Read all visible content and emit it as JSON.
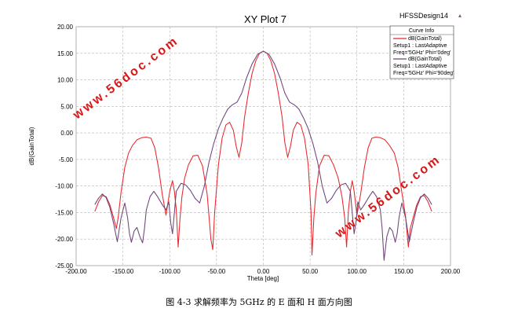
{
  "header": {
    "design_name": "HFSSDesign14",
    "design_icon": "triangle-icon"
  },
  "legend": {
    "title": "Curve Info"
  },
  "watermark": {
    "text": "www.56doc.com",
    "color": "#d81818"
  },
  "caption": "图 4-3 求解频率为 5GHz 的 E 面和 H 面方向图",
  "chart_data": {
    "type": "line",
    "title": "XY Plot 7",
    "xlabel": "Theta [deg]",
    "ylabel": "dB(GainTotal)",
    "xlim": [
      -200,
      200
    ],
    "ylim": [
      -25,
      20
    ],
    "xticks": [
      -200,
      -150,
      -100,
      -50,
      0,
      50,
      100,
      150,
      200
    ],
    "yticks": [
      20,
      15,
      10,
      5,
      0,
      -5,
      -10,
      -15,
      -20,
      -25
    ],
    "xtick_labels": [
      "-200.00",
      "-150.00",
      "-100.00",
      "-50.00",
      "0.00",
      "50.00",
      "100.00",
      "150.00",
      "200.00"
    ],
    "ytick_labels": [
      "20.00",
      "15.00",
      "10.00",
      "5.00",
      "0.00",
      "-5.00",
      "-10.00",
      "-15.00",
      "-20.00",
      "-25.00"
    ],
    "grid": true,
    "legend_position": "top-right",
    "series": [
      {
        "name": "dB(GainTotal)",
        "legend_lines": [
          "dB(GainTotal)",
          "Setup1 : LastAdaptive",
          "Freq='5GHz' Phi='0deg'"
        ],
        "color": "#e8262c",
        "x": [
          -180,
          -176,
          -172,
          -168,
          -164,
          -160,
          -157,
          -155,
          -152,
          -148,
          -144,
          -140,
          -135,
          -130,
          -125,
          -120,
          -116,
          -112,
          -108,
          -104,
          -100,
          -97,
          -95,
          -93,
          -91,
          -89,
          -87,
          -84,
          -80,
          -75,
          -70,
          -65,
          -60,
          -56,
          -54,
          -52,
          -48,
          -44,
          -40,
          -36,
          -32,
          -29,
          -26,
          -23,
          -20,
          -16,
          -12,
          -8,
          -4,
          0,
          4,
          8,
          12,
          16,
          20,
          23,
          26,
          29,
          32,
          36,
          40,
          44,
          48,
          51,
          52,
          54,
          56,
          60,
          65,
          70,
          75,
          80,
          84,
          87,
          89,
          91,
          93,
          95,
          97,
          100,
          104,
          108,
          112,
          116,
          120,
          125,
          130,
          135,
          140,
          144,
          148,
          152,
          155,
          157,
          160,
          164,
          168,
          172,
          176,
          180
        ],
        "y": [
          -14.8,
          -13,
          -11.8,
          -12,
          -13.5,
          -16,
          -18,
          -15.8,
          -11.2,
          -6.5,
          -3.8,
          -2.4,
          -1.3,
          -0.9,
          -0.8,
          -1,
          -2.8,
          -6.5,
          -11.5,
          -15.5,
          -11,
          -9,
          -11,
          -14.5,
          -21.5,
          -16,
          -12,
          -8.5,
          -6,
          -4.3,
          -4.2,
          -6.2,
          -11.5,
          -20,
          -22,
          -15,
          -6,
          -1,
          1.5,
          2,
          0.5,
          -2.5,
          -4.6,
          -1.8,
          3,
          7.5,
          11.2,
          13.6,
          15,
          15.4,
          15,
          13.6,
          11.2,
          7.5,
          3,
          -1.8,
          -4.6,
          -2.5,
          0.5,
          2,
          1.5,
          -1,
          -6,
          -15,
          -23,
          -16,
          -11.5,
          -6.2,
          -4.2,
          -4.3,
          -6,
          -8.5,
          -12,
          -16,
          -21.5,
          -14.5,
          -11,
          -9,
          -11,
          -15.5,
          -11.5,
          -6.5,
          -2.8,
          -1,
          -0.8,
          -0.9,
          -1.3,
          -2.4,
          -3.8,
          -6.5,
          -11.2,
          -15.8,
          -21.5,
          -18,
          -16,
          -13.5,
          -12,
          -11.8,
          -13,
          -14.8
        ]
      },
      {
        "name": "dB(GainTotal)",
        "legend_lines": [
          "dB(GainTotal)",
          "Setup1 : LastAdaptive",
          "Freq='5GHz' Phi='90deg'"
        ],
        "color": "#6d4478",
        "x": [
          -180,
          -176,
          -172,
          -168,
          -164,
          -160,
          -156,
          -152,
          -148,
          -145,
          -143,
          -141,
          -138,
          -135,
          -132,
          -129,
          -127,
          -125,
          -121,
          -117,
          -113,
          -108,
          -104,
          -101,
          -99,
          -97,
          -93,
          -88,
          -83,
          -78,
          -73,
          -68,
          -63,
          -58,
          -53,
          -48,
          -43,
          -38,
          -33,
          -28,
          -23,
          -18,
          -12,
          -6,
          0,
          6,
          12,
          18,
          23,
          28,
          33,
          38,
          43,
          48,
          53,
          58,
          63,
          68,
          73,
          78,
          83,
          88,
          93,
          97,
          99,
          101,
          104,
          108,
          113,
          117,
          121,
          125,
          127,
          129,
          132,
          135,
          138,
          141,
          143,
          145,
          148,
          152,
          156,
          160,
          164,
          168,
          172,
          176,
          180
        ],
        "y": [
          -13.5,
          -12.3,
          -11.5,
          -12.2,
          -14,
          -17,
          -20.5,
          -16,
          -13.2,
          -16,
          -19,
          -20.6,
          -18.5,
          -17.8,
          -19.5,
          -20.7,
          -18,
          -14.5,
          -12,
          -11,
          -12,
          -13.5,
          -14.5,
          -13,
          -16.8,
          -19,
          -11,
          -9.5,
          -9.8,
          -10.8,
          -12.3,
          -13.2,
          -10,
          -5.5,
          -2,
          0.8,
          2.8,
          4.5,
          5.3,
          5.8,
          7.5,
          10.3,
          13,
          14.8,
          15.4,
          14.8,
          13,
          10.3,
          7.5,
          5.8,
          5.3,
          4.5,
          2.8,
          0.8,
          -2,
          -5.5,
          -10,
          -13.2,
          -12.3,
          -10.8,
          -9.8,
          -9.5,
          -11,
          -19,
          -16.8,
          -13,
          -14.5,
          -13.5,
          -12,
          -11,
          -12,
          -14.5,
          -18,
          -24,
          -19.5,
          -17.8,
          -18.5,
          -20.6,
          -19,
          -16,
          -13.2,
          -16,
          -20.5,
          -17,
          -14,
          -12.2,
          -11.5,
          -12.3,
          -13.5
        ]
      }
    ]
  }
}
